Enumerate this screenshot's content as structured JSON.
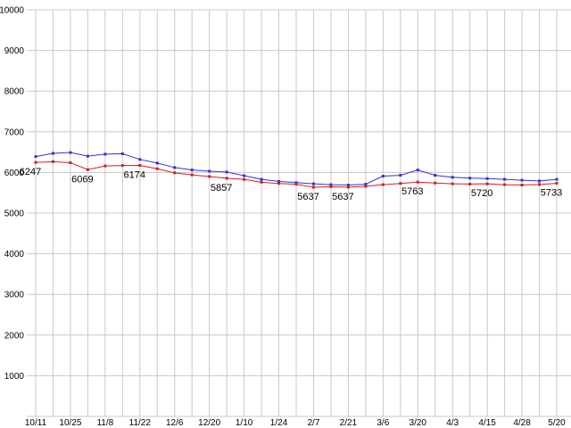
{
  "page": {
    "background": "#ffffff"
  },
  "chart_data": {
    "type": "line",
    "title": "",
    "xlabel": "",
    "ylabel": "",
    "ylim": [
      0,
      10000
    ],
    "y_step": 1000,
    "grid": true,
    "grid_color": "#c8c8c8",
    "text_color": "#000000",
    "legend": "none",
    "x_labels": [
      "10/11",
      "10/25",
      "11/8",
      "11/22",
      "12/6",
      "12/20",
      "1/10",
      "1/24",
      "2/7",
      "2/21",
      "3/6",
      "3/20",
      "4/3",
      "4/15",
      "4/28",
      "5/20"
    ],
    "x_tick_every": 2,
    "y_ticks": [
      "10000",
      "9000",
      "8000",
      "7000",
      "6000",
      "5000",
      "4000",
      "3000",
      "2000",
      "1000"
    ],
    "series": [
      {
        "name": "series-blue",
        "color": "#3333cc",
        "values": [
          6390,
          6470,
          6490,
          6400,
          6450,
          6460,
          6320,
          6230,
          6120,
          6060,
          6030,
          6010,
          5920,
          5830,
          5780,
          5750,
          5720,
          5700,
          5690,
          5710,
          5910,
          5930,
          6060,
          5930,
          5880,
          5860,
          5850,
          5830,
          5810,
          5790,
          5830
        ]
      },
      {
        "name": "series-red",
        "color": "#cc2222",
        "values": [
          6247,
          6265,
          6240,
          6069,
          6160,
          6170,
          6174,
          6090,
          5990,
          5940,
          5900,
          5857,
          5830,
          5760,
          5730,
          5710,
          5637,
          5650,
          5637,
          5660,
          5700,
          5730,
          5763,
          5740,
          5720,
          5715,
          5720,
          5700,
          5690,
          5705,
          5733
        ]
      }
    ],
    "point_labels": [
      {
        "index": 0,
        "text": "6247"
      },
      {
        "index": 3,
        "text": "6069"
      },
      {
        "index": 6,
        "text": "6174"
      },
      {
        "index": 11,
        "text": "5857"
      },
      {
        "index": 16,
        "text": "5637"
      },
      {
        "index": 18,
        "text": "5637"
      },
      {
        "index": 22,
        "text": "5763"
      },
      {
        "index": 26,
        "text": "5720"
      },
      {
        "index": 30,
        "text": "5733"
      }
    ]
  }
}
